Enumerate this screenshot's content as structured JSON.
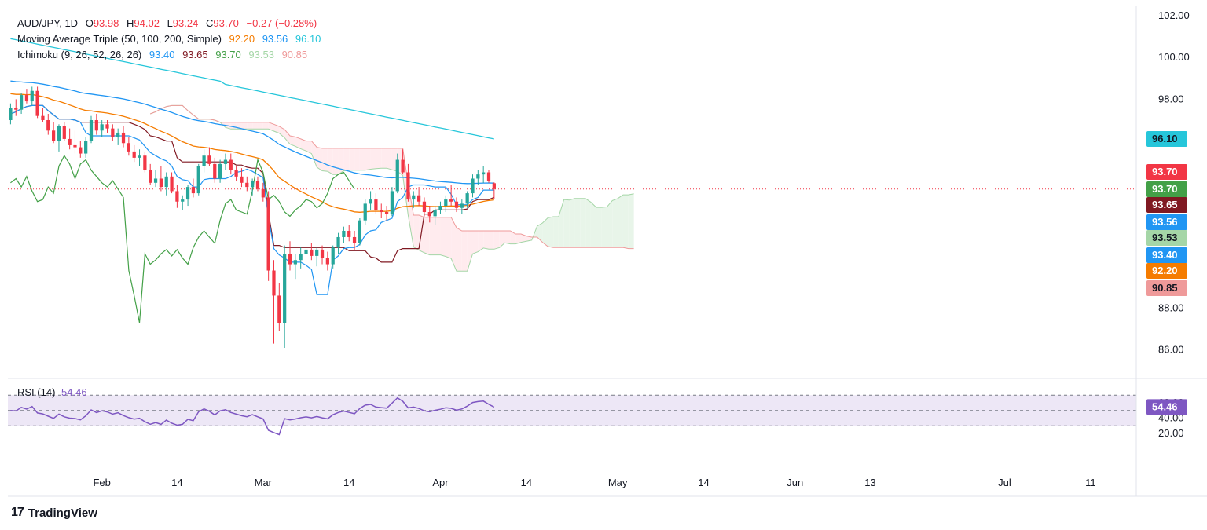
{
  "legend": {
    "symbol": "AUD/JPY, 1D",
    "o_label": "O",
    "o_value": "93.98",
    "h_label": "H",
    "h_value": "94.02",
    "l_label": "L",
    "l_value": "93.24",
    "c_label": "C",
    "c_value": "93.70",
    "change": "−0.27 (−0.28%)",
    "ma_label": "Moving Average Triple (50, 100, 200, Simple)",
    "ma_values": [
      "92.20",
      "93.56",
      "96.10"
    ],
    "ichimoku_label": "Ichimoku (9, 26, 52, 26, 26)",
    "ichimoku_values": [
      "93.40",
      "93.65",
      "93.70",
      "93.53",
      "90.85"
    ],
    "rsi_label": "RSI (14)",
    "rsi_value": "54.46"
  },
  "footer": {
    "brand": "TradingView"
  },
  "colors": {
    "up": "#26a69a",
    "down": "#f23645",
    "ma50": "#f57c00",
    "ma100": "#2196f3",
    "ma200": "#26c6da",
    "tenkan": "#2196f3",
    "kijun": "#801922",
    "chikou": "#43a047",
    "span_a": "#a5d6a7",
    "span_b": "#ef9a9a",
    "cloud_up": "#e8f5e9",
    "cloud_down": "#ffebee",
    "rsi": "#7e57c2",
    "rsi_band": "#ede7f6",
    "close_line": "#f23645"
  },
  "chart_data": {
    "type": "candlestick",
    "price_axis": {
      "min": 85,
      "max": 102,
      "ticks": [
        "102.00",
        "100.00",
        "98.00",
        "96.00",
        "88.00",
        "86.00"
      ]
    },
    "x_ticks": [
      {
        "label": "Feb",
        "i": 17
      },
      {
        "label": "14",
        "i": 31
      },
      {
        "label": "Mar",
        "i": 47
      },
      {
        "label": "14",
        "i": 63
      },
      {
        "label": "Apr",
        "i": 80
      },
      {
        "label": "14",
        "i": 96
      },
      {
        "label": "May",
        "i": 113
      },
      {
        "label": "14",
        "i": 129
      },
      {
        "label": "Jun",
        "i": 146
      },
      {
        "label": "13",
        "i": 160
      },
      {
        "label": "Jul",
        "i": 185
      },
      {
        "label": "11",
        "i": 201
      }
    ],
    "price_labels": [
      {
        "value": "96.10",
        "series": "ma200"
      },
      {
        "value": "93.70",
        "series": "close"
      },
      {
        "value": "93.70",
        "series": "chikou"
      },
      {
        "value": "93.65",
        "series": "kijun"
      },
      {
        "value": "93.56",
        "series": "ma100"
      },
      {
        "value": "93.53",
        "series": "span_a"
      },
      {
        "value": "93.40",
        "series": "tenkan"
      },
      {
        "value": "92.20",
        "series": "ma50"
      },
      {
        "value": "90.85",
        "series": "span_b"
      }
    ],
    "candles": [
      [
        97.0,
        97.8,
        96.8,
        97.6
      ],
      [
        97.6,
        98.0,
        97.2,
        97.5
      ],
      [
        97.5,
        98.3,
        97.3,
        98.2
      ],
      [
        98.2,
        98.5,
        97.8,
        97.9
      ],
      [
        97.9,
        98.6,
        97.7,
        98.4
      ],
      [
        98.4,
        98.6,
        97.1,
        97.2
      ],
      [
        97.2,
        97.6,
        96.9,
        97.0
      ],
      [
        97.0,
        97.3,
        96.3,
        96.5
      ],
      [
        96.5,
        96.9,
        95.9,
        96.0
      ],
      [
        96.0,
        96.8,
        95.5,
        96.7
      ],
      [
        96.7,
        96.9,
        96.0,
        96.1
      ],
      [
        96.1,
        96.6,
        95.6,
        95.8
      ],
      [
        95.8,
        96.5,
        95.4,
        95.7
      ],
      [
        95.7,
        96.0,
        95.2,
        95.4
      ],
      [
        95.4,
        96.2,
        95.2,
        96.0
      ],
      [
        96.0,
        97.2,
        95.9,
        97.0
      ],
      [
        97.0,
        97.3,
        96.3,
        96.5
      ],
      [
        96.5,
        97.0,
        96.2,
        96.8
      ],
      [
        96.8,
        97.0,
        96.4,
        96.6
      ],
      [
        96.6,
        96.8,
        96.0,
        96.2
      ],
      [
        96.2,
        96.6,
        95.8,
        96.4
      ],
      [
        96.4,
        96.7,
        95.7,
        95.9
      ],
      [
        95.9,
        96.2,
        95.3,
        95.5
      ],
      [
        95.5,
        95.8,
        95.0,
        95.2
      ],
      [
        95.2,
        95.6,
        94.8,
        95.3
      ],
      [
        95.3,
        95.5,
        94.5,
        94.6
      ],
      [
        94.6,
        94.9,
        93.9,
        94.0
      ],
      [
        94.0,
        94.6,
        93.8,
        94.2
      ],
      [
        94.2,
        94.8,
        93.6,
        93.8
      ],
      [
        93.8,
        94.5,
        93.4,
        94.3
      ],
      [
        94.3,
        94.5,
        93.5,
        93.6
      ],
      [
        93.6,
        93.9,
        92.8,
        93.1
      ],
      [
        93.1,
        93.4,
        92.7,
        93.2
      ],
      [
        93.2,
        93.9,
        92.9,
        93.8
      ],
      [
        93.8,
        94.2,
        93.3,
        93.5
      ],
      [
        93.5,
        94.9,
        93.4,
        94.8
      ],
      [
        94.8,
        95.6,
        94.5,
        95.3
      ],
      [
        95.3,
        95.7,
        94.8,
        94.9
      ],
      [
        94.9,
        95.2,
        94.0,
        94.2
      ],
      [
        94.2,
        95.1,
        94.0,
        94.9
      ],
      [
        94.9,
        95.4,
        94.6,
        95.1
      ],
      [
        95.1,
        95.4,
        94.4,
        94.6
      ],
      [
        94.6,
        94.8,
        94.1,
        94.3
      ],
      [
        94.3,
        94.7,
        93.8,
        94.0
      ],
      [
        94.0,
        94.3,
        93.6,
        93.8
      ],
      [
        93.8,
        94.2,
        93.4,
        94.1
      ],
      [
        94.1,
        94.3,
        93.6,
        93.7
      ],
      [
        93.7,
        94.0,
        93.1,
        93.3
      ],
      [
        93.3,
        93.6,
        89.3,
        89.8
      ],
      [
        89.8,
        90.3,
        86.3,
        88.6
      ],
      [
        88.6,
        89.2,
        86.9,
        87.3
      ],
      [
        87.3,
        91.0,
        86.1,
        90.6
      ],
      [
        90.6,
        91.2,
        89.8,
        90.1
      ],
      [
        90.1,
        90.6,
        89.4,
        90.3
      ],
      [
        90.3,
        90.9,
        89.9,
        90.6
      ],
      [
        90.6,
        91.0,
        90.2,
        90.8
      ],
      [
        90.8,
        91.1,
        90.3,
        90.5
      ],
      [
        90.5,
        90.9,
        90.0,
        90.8
      ],
      [
        90.8,
        91.0,
        90.1,
        90.4
      ],
      [
        90.4,
        90.7,
        89.8,
        90.1
      ],
      [
        90.1,
        91.0,
        89.9,
        90.9
      ],
      [
        90.9,
        91.6,
        90.6,
        91.4
      ],
      [
        91.4,
        91.9,
        91.1,
        91.7
      ],
      [
        91.7,
        92.0,
        91.2,
        91.4
      ],
      [
        91.4,
        91.7,
        90.8,
        91.1
      ],
      [
        91.1,
        92.3,
        91.0,
        92.2
      ],
      [
        92.2,
        93.2,
        92.0,
        93.0
      ],
      [
        93.0,
        93.6,
        92.7,
        93.2
      ],
      [
        93.2,
        93.5,
        92.5,
        92.7
      ],
      [
        92.7,
        93.0,
        92.3,
        92.6
      ],
      [
        92.6,
        92.9,
        92.2,
        92.5
      ],
      [
        92.5,
        93.8,
        92.4,
        93.6
      ],
      [
        93.6,
        95.4,
        93.5,
        95.1
      ],
      [
        95.1,
        95.6,
        94.4,
        94.5
      ],
      [
        94.5,
        94.9,
        93.1,
        93.2
      ],
      [
        93.2,
        93.6,
        92.8,
        93.4
      ],
      [
        93.4,
        93.8,
        92.9,
        93.1
      ],
      [
        93.1,
        93.3,
        92.4,
        92.6
      ],
      [
        92.6,
        92.9,
        92.1,
        92.4
      ],
      [
        92.4,
        92.9,
        92.0,
        92.7
      ],
      [
        92.7,
        93.1,
        92.5,
        92.9
      ],
      [
        92.9,
        93.4,
        92.6,
        93.2
      ],
      [
        93.2,
        93.9,
        92.9,
        93.1
      ],
      [
        93.1,
        93.3,
        92.6,
        92.8
      ],
      [
        92.8,
        93.2,
        92.5,
        93.0
      ],
      [
        93.0,
        93.6,
        92.8,
        93.5
      ],
      [
        93.5,
        94.4,
        93.3,
        94.2
      ],
      [
        94.2,
        94.6,
        93.9,
        94.4
      ],
      [
        94.4,
        94.8,
        94.0,
        94.5
      ],
      [
        94.5,
        94.6,
        94.0,
        94.1
      ],
      [
        93.98,
        94.02,
        93.24,
        93.7
      ]
    ],
    "rsi": {
      "ticks": [
        "60.00",
        "40.00",
        "20.00"
      ],
      "upper": 70,
      "lower": 30,
      "last": 54.46
    }
  }
}
